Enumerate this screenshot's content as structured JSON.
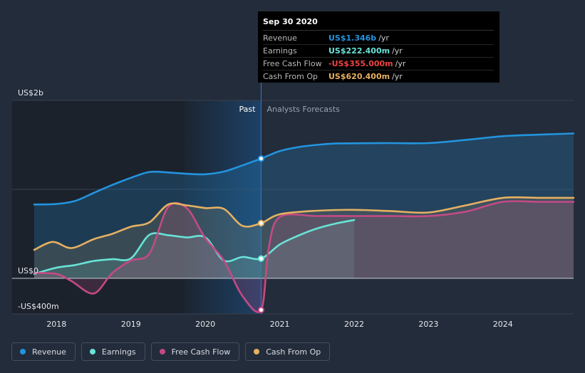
{
  "tooltip": {
    "title": "Sep 30 2020",
    "rows": [
      {
        "label": "Revenue",
        "value": "US$1.346b",
        "unit": "/yr",
        "color": "#2394df"
      },
      {
        "label": "Earnings",
        "value": "US$222.400m",
        "unit": "/yr",
        "color": "#68e3d7"
      },
      {
        "label": "Free Cash Flow",
        "value": "-US$355.000m",
        "unit": "/yr",
        "color": "#ee4444"
      },
      {
        "label": "Cash From Op",
        "value": "US$620.400m",
        "unit": "/yr",
        "color": "#e6b062"
      }
    ]
  },
  "legend": [
    {
      "label": "Revenue",
      "color": "#2394df"
    },
    {
      "label": "Earnings",
      "color": "#68e3d7"
    },
    {
      "label": "Free Cash Flow",
      "color": "#c44a85"
    },
    {
      "label": "Cash From Op",
      "color": "#e6b062"
    }
  ],
  "chart_data": {
    "type": "line",
    "title": "",
    "y_unit": "US$m",
    "ylim": [
      -400,
      2000
    ],
    "y_tick_labels": [
      {
        "value": 2000,
        "label": "US$2b"
      },
      {
        "value": 0,
        "label": "US$0"
      },
      {
        "value": -400,
        "label": "-US$400m"
      }
    ],
    "x_range": [
      2017.7,
      2024.95
    ],
    "x_ticks": [
      2018,
      2019,
      2020,
      2021,
      2022,
      2023,
      2024
    ],
    "x_tick_labels": [
      "2018",
      "2019",
      "2020",
      "2021",
      "2022",
      "2023",
      "2024"
    ],
    "past_label": "Past",
    "forecast_label": "Analysts Forecasts",
    "divider_x": 2020.75,
    "highlight_start": 2019.72,
    "series": [
      {
        "name": "Revenue",
        "color": "#2394df",
        "x": [
          2017.7,
          2018,
          2018.25,
          2018.5,
          2018.75,
          2019,
          2019.25,
          2019.5,
          2019.75,
          2020,
          2020.25,
          2020.5,
          2020.75,
          2021,
          2021.25,
          2021.5,
          2021.75,
          2022,
          2022.5,
          2023,
          2023.5,
          2024,
          2024.5,
          2024.95
        ],
        "y": [
          830,
          835,
          870,
          960,
          1050,
          1130,
          1195,
          1190,
          1175,
          1170,
          1200,
          1270,
          1346,
          1430,
          1475,
          1500,
          1515,
          1518,
          1520,
          1520,
          1555,
          1598,
          1615,
          1628
        ]
      },
      {
        "name": "Earnings",
        "color": "#68e3d7",
        "x": [
          2017.7,
          2018,
          2018.25,
          2018.5,
          2018.75,
          2019,
          2019.25,
          2019.5,
          2019.75,
          2020,
          2020.25,
          2020.5,
          2020.75,
          2021,
          2021.25,
          2021.5,
          2021.75,
          2022
        ],
        "y": [
          50,
          120,
          150,
          195,
          215,
          225,
          490,
          485,
          460,
          460,
          200,
          240,
          222,
          380,
          480,
          560,
          615,
          655
        ]
      },
      {
        "name": "Free Cash Flow",
        "color": "#c44a85",
        "x": [
          2017.7,
          2018,
          2018.2,
          2018.5,
          2018.75,
          2019,
          2019.25,
          2019.5,
          2019.75,
          2020,
          2020.25,
          2020.5,
          2020.75,
          2020.85,
          2021,
          2021.5,
          2022,
          2022.5,
          2023,
          2023.5,
          2024,
          2024.5,
          2024.95
        ],
        "y": [
          60,
          50,
          -30,
          -170,
          60,
          200,
          280,
          800,
          790,
          450,
          200,
          -200,
          -355,
          330,
          690,
          700,
          700,
          700,
          700,
          750,
          860,
          860,
          860
        ]
      },
      {
        "name": "Cash From Op",
        "color": "#e6b062",
        "x": [
          2017.7,
          2017.95,
          2018.2,
          2018.5,
          2018.75,
          2019,
          2019.25,
          2019.5,
          2019.75,
          2020,
          2020.25,
          2020.5,
          2020.75,
          2021,
          2021.5,
          2022,
          2022.5,
          2023,
          2023.5,
          2024,
          2024.5,
          2024.95
        ],
        "y": [
          320,
          410,
          340,
          440,
          500,
          580,
          630,
          830,
          820,
          790,
          780,
          590,
          620,
          720,
          760,
          770,
          755,
          740,
          820,
          905,
          905,
          905
        ]
      }
    ],
    "markers": [
      {
        "series": "Revenue",
        "x": 2020.75,
        "y": 1346
      },
      {
        "series": "Earnings",
        "x": 2020.75,
        "y": 222
      },
      {
        "series": "Free Cash Flow",
        "x": 2020.75,
        "y": -355
      },
      {
        "series": "Cash From Op",
        "x": 2020.75,
        "y": 620
      }
    ]
  }
}
